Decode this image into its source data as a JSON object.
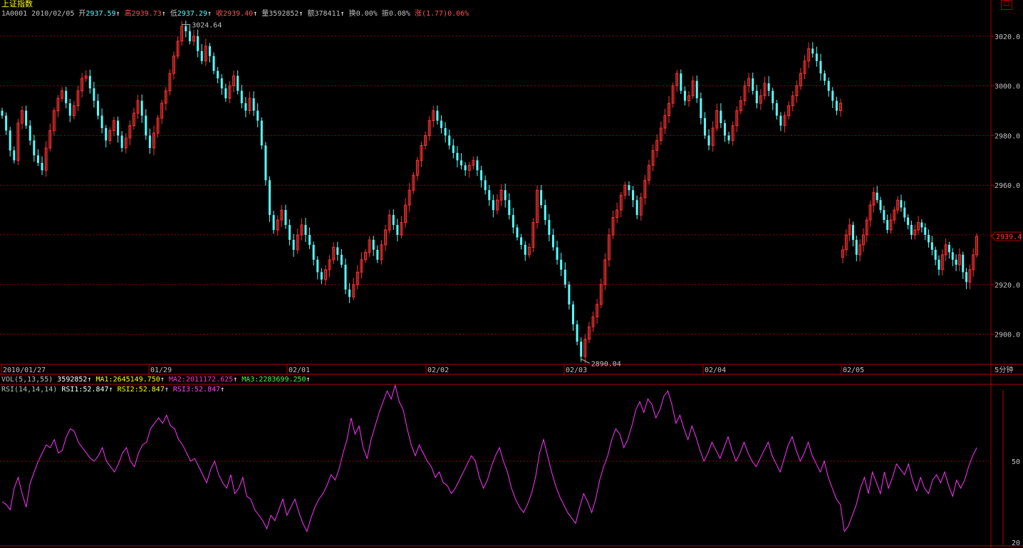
{
  "header": {
    "title": "上证指数",
    "code": "1A0001",
    "date": "2010/02/05",
    "open_label": "开",
    "open": "2937.59",
    "high_label": "高",
    "high": "2939.73",
    "low_label": "低",
    "low": "2937.29",
    "close_label": "收",
    "close": "2939.40",
    "volume_label": "量",
    "volume": "3592852",
    "amount_label": "额",
    "amount": "378411",
    "turnover_label": "换",
    "turnover": "0.00%",
    "amplitude_label": "振",
    "amplitude": "0.08%",
    "change_label": "涨",
    "change": "(1.77)0.06%",
    "arrow": "↑"
  },
  "vol_indicator": {
    "name": "VOL(5,13,55)",
    "value": "3592852",
    "ma1": "MA1:2645149.750",
    "ma2": "MA2:2011172.625",
    "ma3": "MA3:2283699.250"
  },
  "rsi_indicator": {
    "name": "RSI(14,14,14)",
    "rsi1": "RSI1:52.847",
    "rsi2": "RSI2:52.847",
    "rsi3": "RSI3:52.847"
  },
  "period_label": "5分钟",
  "window_button": "口",
  "colors": {
    "up": "#ff3030",
    "down": "#55ffff",
    "rsi": "#ff33ff",
    "grid": "#a00000",
    "frame": "#b00000"
  },
  "chart_data": [
    {
      "type": "candlestick",
      "x_labels": [
        "2010/01/27",
        "01/29",
        "02/01",
        "02/02",
        "02/03",
        "02/04",
        "02/05"
      ],
      "ylim": [
        2888,
        3030
      ],
      "y_ticks": [
        2900.0,
        2920.0,
        2940.0,
        2960.0,
        2980.0,
        3000.0,
        3020.0
      ],
      "annotations": [
        {
          "text": "3024.64",
          "value": 3024.64,
          "kind": "high"
        },
        {
          "text": "2890.04",
          "value": 2890.04,
          "kind": "low"
        }
      ],
      "last_price": "2939.4",
      "close_series": [
        2988,
        2982,
        2974,
        2970,
        2985,
        2990,
        2984,
        2978,
        2972,
        2969,
        2966,
        2975,
        2982,
        2990,
        2995,
        2998,
        2993,
        2988,
        2992,
        2998,
        3003,
        3004,
        2999,
        2994,
        2988,
        2983,
        2978,
        2982,
        2986,
        2980,
        2975,
        2979,
        2984,
        2989,
        2994,
        2988,
        2980,
        2975,
        2981,
        2987,
        2993,
        2998,
        3005,
        3012,
        3018,
        3024,
        3022,
        3018,
        3020,
        3014,
        3010,
        3016,
        3012,
        3006,
        3003,
        2999,
        2995,
        3000,
        3004,
        2998,
        2993,
        2990,
        2995,
        2990,
        2986,
        2976,
        2962,
        2948,
        2942,
        2946,
        2950,
        2944,
        2938,
        2934,
        2940,
        2944,
        2940,
        2936,
        2930,
        2925,
        2922,
        2926,
        2930,
        2935,
        2932,
        2928,
        2918,
        2915,
        2920,
        2925,
        2930,
        2933,
        2938,
        2934,
        2930,
        2936,
        2942,
        2948,
        2944,
        2940,
        2945,
        2952,
        2958,
        2964,
        2970,
        2976,
        2980,
        2986,
        2990,
        2986,
        2983,
        2980,
        2976,
        2973,
        2970,
        2968,
        2966,
        2968,
        2970,
        2966,
        2962,
        2958,
        2954,
        2950,
        2954,
        2958,
        2954,
        2948,
        2943,
        2939,
        2936,
        2932,
        2935,
        2945,
        2958,
        2952,
        2946,
        2940,
        2935,
        2930,
        2926,
        2920,
        2912,
        2904,
        2897,
        2891,
        2898,
        2903,
        2907,
        2912,
        2920,
        2930,
        2940,
        2947,
        2950,
        2956,
        2960,
        2958,
        2954,
        2948,
        2955,
        2962,
        2968,
        2974,
        2978,
        2983,
        2988,
        2993,
        3000,
        3005,
        2998,
        2994,
        2996,
        3002,
        2995,
        2987,
        2980,
        2976,
        2983,
        2990,
        2985,
        2980,
        2978,
        2984,
        2990,
        2994,
        3000,
        3003,
        2998,
        2993,
        2996,
        3001,
        2998,
        2993,
        2988,
        2984,
        2988,
        2992,
        2996,
        3000,
        3005,
        3010,
        3015,
        3013,
        3010,
        3005,
        3002,
        2998,
        2994,
        2990,
        2993
      ],
      "close_series_day6": [
        2934,
        2940,
        2944,
        2938,
        2932,
        2936,
        2940,
        2946,
        2952,
        2957,
        2954,
        2950,
        2946,
        2942,
        2946,
        2950,
        2954,
        2951,
        2947,
        2944,
        2940,
        2942,
        2945,
        2943,
        2940,
        2937,
        2934,
        2930,
        2926,
        2932,
        2936,
        2933,
        2930,
        2928,
        2932,
        2925,
        2921,
        2926,
        2932,
        2939.4
      ]
    },
    {
      "type": "line",
      "name": "RSI1",
      "ylim": [
        20,
        85
      ],
      "y_ticks": [
        20,
        50
      ],
      "values": [
        35,
        34,
        32,
        40,
        44,
        38,
        33,
        42,
        46,
        50,
        53,
        56,
        55,
        58,
        53,
        54,
        59,
        62,
        61,
        57,
        55,
        53,
        51,
        50,
        52,
        55,
        50,
        48,
        46,
        49,
        53,
        55,
        50,
        48,
        53,
        56,
        57,
        62,
        64,
        66,
        64,
        67,
        63,
        62,
        58,
        56,
        53,
        50,
        51,
        48,
        45,
        42,
        47,
        50,
        45,
        42,
        40,
        45,
        38,
        40,
        44,
        37,
        36,
        32,
        30,
        28,
        25,
        30,
        28,
        32,
        36,
        30,
        33,
        36,
        31,
        27,
        24,
        29,
        33,
        36,
        38,
        41,
        45,
        43,
        47,
        53,
        58,
        66,
        60,
        63,
        55,
        51,
        58,
        63,
        68,
        72,
        76,
        73,
        78,
        72,
        69,
        62,
        56,
        52,
        56,
        53,
        50,
        48,
        44,
        46,
        42,
        41,
        38,
        40,
        43,
        46,
        49,
        52,
        50,
        44,
        40,
        43,
        48,
        52,
        55,
        50,
        46,
        40,
        36,
        33,
        31,
        34,
        38,
        44,
        53,
        58,
        52,
        46,
        41,
        37,
        34,
        31,
        29,
        27,
        33,
        38,
        35,
        31,
        36,
        43,
        48,
        52,
        58,
        62,
        60,
        55,
        58,
        63,
        69,
        72,
        68,
        73,
        71,
        66,
        69,
        74,
        76,
        71,
        64,
        67,
        62,
        58,
        63,
        59,
        54,
        50,
        53,
        57,
        54,
        51,
        55,
        59,
        54,
        50,
        53,
        57,
        53,
        50,
        48,
        51,
        54,
        57,
        52,
        49,
        46,
        51,
        56,
        59,
        54,
        50,
        53,
        57,
        52,
        49,
        46,
        50,
        44,
        40,
        36,
        34,
        24,
        26,
        30,
        34,
        40,
        44,
        38,
        46,
        42,
        38,
        46,
        40,
        44,
        49,
        47,
        45,
        49,
        43,
        39,
        44,
        40,
        38,
        43,
        45,
        42,
        46,
        41,
        37,
        43,
        40,
        43,
        48,
        52,
        55
      ]
    }
  ]
}
